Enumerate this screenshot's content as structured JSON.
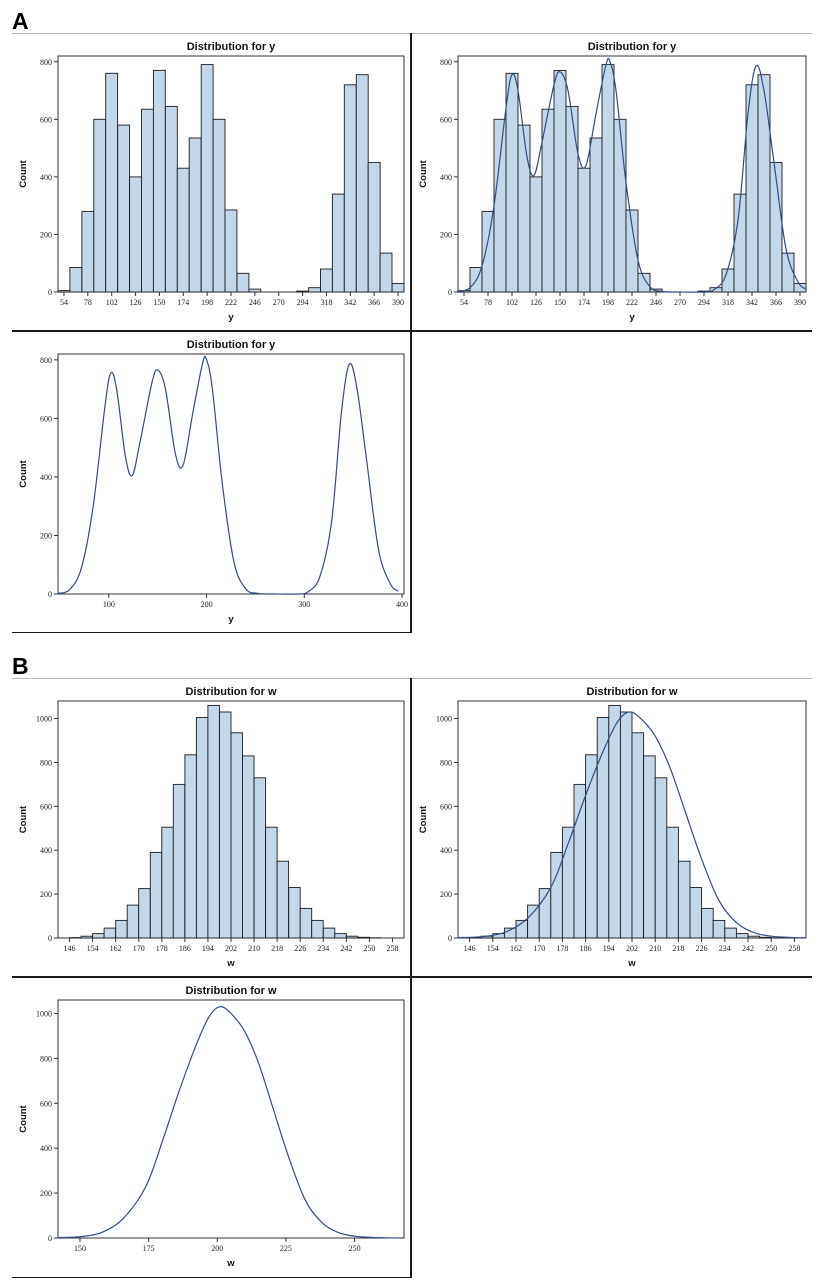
{
  "labels": {
    "a": "A",
    "b": "B"
  },
  "chart_data": [
    {
      "id": "A1",
      "type": "bar",
      "title": "Distribution for y",
      "xlabel": "y",
      "ylabel": "Count",
      "bin_start": 48,
      "bin_width": 12,
      "values": [
        5,
        85,
        280,
        600,
        760,
        580,
        400,
        635,
        770,
        645,
        430,
        535,
        790,
        600,
        285,
        65,
        10,
        0,
        0,
        0,
        3,
        15,
        80,
        340,
        720,
        755,
        450,
        135,
        30
      ],
      "xlim": [
        48,
        396
      ],
      "ylim": [
        0,
        820
      ],
      "xticks": [
        54,
        78,
        102,
        126,
        150,
        174,
        198,
        222,
        246,
        270,
        294,
        318,
        342,
        366,
        390
      ],
      "yticks": [
        0,
        200,
        400,
        600,
        800
      ],
      "curve": false,
      "bars": true
    },
    {
      "id": "A2",
      "type": "bar",
      "title": "Distribution for y",
      "xlabel": "y",
      "ylabel": "Count",
      "bin_start": 48,
      "bin_width": 12,
      "values": [
        5,
        85,
        280,
        600,
        760,
        580,
        400,
        635,
        770,
        645,
        430,
        535,
        790,
        600,
        285,
        65,
        10,
        0,
        0,
        0,
        3,
        15,
        80,
        340,
        720,
        755,
        450,
        135,
        30
      ],
      "xlim": [
        48,
        396
      ],
      "ylim": [
        0,
        820
      ],
      "xticks": [
        54,
        78,
        102,
        126,
        150,
        174,
        198,
        222,
        246,
        270,
        294,
        318,
        342,
        366,
        390
      ],
      "yticks": [
        0,
        200,
        400,
        600,
        800
      ],
      "curve": true,
      "bars": true,
      "density": [
        [
          48,
          2
        ],
        [
          60,
          15
        ],
        [
          72,
          90
        ],
        [
          84,
          300
        ],
        [
          96,
          640
        ],
        [
          102,
          755
        ],
        [
          108,
          700
        ],
        [
          117,
          470
        ],
        [
          124,
          405
        ],
        [
          132,
          520
        ],
        [
          144,
          720
        ],
        [
          150,
          765
        ],
        [
          158,
          700
        ],
        [
          168,
          480
        ],
        [
          176,
          440
        ],
        [
          186,
          620
        ],
        [
          196,
          790
        ],
        [
          200,
          800
        ],
        [
          206,
          700
        ],
        [
          216,
          380
        ],
        [
          228,
          110
        ],
        [
          240,
          18
        ],
        [
          252,
          2
        ],
        [
          270,
          0
        ],
        [
          294,
          0
        ],
        [
          304,
          8
        ],
        [
          316,
          60
        ],
        [
          328,
          250
        ],
        [
          338,
          620
        ],
        [
          346,
          785
        ],
        [
          354,
          700
        ],
        [
          364,
          450
        ],
        [
          376,
          150
        ],
        [
          388,
          35
        ],
        [
          396,
          10
        ]
      ]
    },
    {
      "id": "A3",
      "type": "line",
      "title": "Distribution for y",
      "xlabel": "y",
      "ylabel": "Count",
      "xlim": [
        48,
        402
      ],
      "ylim": [
        0,
        820
      ],
      "xticks": [
        100,
        200,
        300,
        400
      ],
      "yticks": [
        0,
        200,
        400,
        600,
        800
      ],
      "curve": true,
      "bars": false,
      "density": [
        [
          48,
          2
        ],
        [
          60,
          15
        ],
        [
          72,
          90
        ],
        [
          84,
          300
        ],
        [
          96,
          640
        ],
        [
          102,
          755
        ],
        [
          108,
          700
        ],
        [
          117,
          470
        ],
        [
          124,
          405
        ],
        [
          132,
          520
        ],
        [
          144,
          720
        ],
        [
          150,
          765
        ],
        [
          158,
          700
        ],
        [
          168,
          480
        ],
        [
          176,
          440
        ],
        [
          186,
          620
        ],
        [
          196,
          790
        ],
        [
          200,
          800
        ],
        [
          206,
          700
        ],
        [
          216,
          380
        ],
        [
          228,
          110
        ],
        [
          240,
          18
        ],
        [
          252,
          2
        ],
        [
          270,
          0
        ],
        [
          294,
          0
        ],
        [
          304,
          8
        ],
        [
          316,
          60
        ],
        [
          328,
          250
        ],
        [
          338,
          620
        ],
        [
          346,
          785
        ],
        [
          354,
          700
        ],
        [
          364,
          450
        ],
        [
          376,
          150
        ],
        [
          388,
          35
        ],
        [
          396,
          10
        ]
      ]
    },
    {
      "id": "B1",
      "type": "bar",
      "title": "Distribution for w",
      "xlabel": "w",
      "ylabel": "Count",
      "bin_start": 142,
      "bin_width": 4,
      "values": [
        0,
        2,
        8,
        20,
        45,
        80,
        150,
        225,
        390,
        505,
        700,
        835,
        1005,
        1060,
        1030,
        935,
        830,
        730,
        505,
        350,
        230,
        135,
        80,
        45,
        20,
        8,
        3,
        1,
        0,
        0
      ],
      "xlim": [
        142,
        262
      ],
      "ylim": [
        0,
        1080
      ],
      "xticks": [
        146,
        154,
        162,
        170,
        178,
        186,
        194,
        202,
        210,
        218,
        226,
        234,
        242,
        250,
        258
      ],
      "yticks": [
        0,
        200,
        400,
        600,
        800,
        1000
      ],
      "curve": false,
      "bars": true
    },
    {
      "id": "B2",
      "type": "bar",
      "title": "Distribution for w",
      "xlabel": "w",
      "ylabel": "Count",
      "bin_start": 142,
      "bin_width": 4,
      "values": [
        0,
        2,
        8,
        20,
        45,
        80,
        150,
        225,
        390,
        505,
        700,
        835,
        1005,
        1060,
        1030,
        935,
        830,
        730,
        505,
        350,
        230,
        135,
        80,
        45,
        20,
        8,
        3,
        1,
        0,
        0
      ],
      "xlim": [
        142,
        262
      ],
      "ylim": [
        0,
        1080
      ],
      "xticks": [
        146,
        154,
        162,
        170,
        178,
        186,
        194,
        202,
        210,
        218,
        226,
        234,
        242,
        250,
        258
      ],
      "yticks": [
        0,
        200,
        400,
        600,
        800,
        1000
      ],
      "curve": true,
      "bars": true,
      "density": [
        [
          142,
          2
        ],
        [
          150,
          6
        ],
        [
          158,
          25
        ],
        [
          166,
          90
        ],
        [
          174,
          230
        ],
        [
          180,
          430
        ],
        [
          186,
          650
        ],
        [
          192,
          850
        ],
        [
          197,
          985
        ],
        [
          201,
          1030
        ],
        [
          205,
          1000
        ],
        [
          210,
          920
        ],
        [
          215,
          780
        ],
        [
          220,
          590
        ],
        [
          226,
          360
        ],
        [
          232,
          170
        ],
        [
          238,
          70
        ],
        [
          244,
          25
        ],
        [
          250,
          8
        ],
        [
          258,
          2
        ],
        [
          262,
          1
        ]
      ]
    },
    {
      "id": "B3",
      "type": "line",
      "title": "Distribution for w",
      "xlabel": "w",
      "ylabel": "Count",
      "xlim": [
        142,
        268
      ],
      "ylim": [
        0,
        1060
      ],
      "xticks": [
        150,
        175,
        200,
        225,
        250
      ],
      "yticks": [
        0,
        200,
        400,
        600,
        800,
        1000
      ],
      "curve": true,
      "bars": false,
      "density": [
        [
          142,
          2
        ],
        [
          150,
          6
        ],
        [
          158,
          25
        ],
        [
          166,
          90
        ],
        [
          174,
          230
        ],
        [
          180,
          430
        ],
        [
          186,
          650
        ],
        [
          192,
          850
        ],
        [
          197,
          985
        ],
        [
          201,
          1030
        ],
        [
          205,
          1000
        ],
        [
          210,
          920
        ],
        [
          215,
          780
        ],
        [
          220,
          590
        ],
        [
          226,
          360
        ],
        [
          232,
          170
        ],
        [
          238,
          70
        ],
        [
          244,
          25
        ],
        [
          250,
          8
        ],
        [
          258,
          2
        ],
        [
          262,
          1
        ],
        [
          268,
          0
        ]
      ]
    }
  ]
}
